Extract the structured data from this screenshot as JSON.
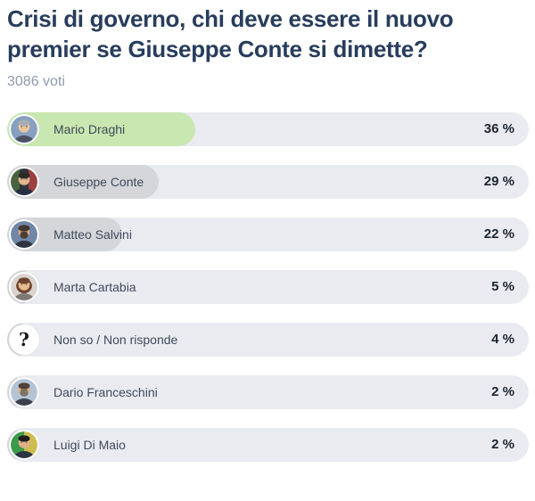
{
  "header": {
    "title": "Crisi di governo, chi deve essere il nuovo premier se Giuseppe Conte si dimette?",
    "votes": "3086 voti"
  },
  "poll": {
    "track_color": "#e9ebf1",
    "leader_fill_color": "#c9e7b0",
    "fill_color": "#d4d6da",
    "options": [
      {
        "name": "Mario Draghi",
        "percent": 36,
        "percent_label": "36 %",
        "leader": true,
        "avatar": {
          "style": "photo",
          "bg": [
            "#87a0c0"
          ],
          "hair": "#a8adb3",
          "skin": "#e9c49f",
          "shirt": "#4a5365",
          "beard": null,
          "hairstyle": "short"
        }
      },
      {
        "name": "Giuseppe Conte",
        "percent": 29,
        "percent_label": "29 %",
        "leader": false,
        "avatar": {
          "style": "photo",
          "bg": [
            "#49633f",
            "#30343c",
            "#9c4040"
          ],
          "hair": "#2e2a28",
          "skin": "#e2b68e",
          "shirt": "#273043",
          "beard": null,
          "hairstyle": "short"
        }
      },
      {
        "name": "Matteo Salvini",
        "percent": 22,
        "percent_label": "22 %",
        "leader": false,
        "avatar": {
          "style": "photo",
          "bg": [
            "#7087a8"
          ],
          "hair": "#41382f",
          "skin": "#dcab80",
          "shirt": "#2e333d",
          "beard": "#4a4036",
          "hairstyle": "short"
        }
      },
      {
        "name": "Marta Cartabia",
        "percent": 5,
        "percent_label": "5 %",
        "leader": false,
        "avatar": {
          "style": "photo",
          "bg": [
            "#d9d4ce"
          ],
          "hair": "#6e432f",
          "skin": "#e6ba92",
          "shirt": "#7d7a76",
          "beard": null,
          "hairstyle": "long"
        }
      },
      {
        "name": "Non so / Non risponde",
        "percent": 4,
        "percent_label": "4 %",
        "leader": false,
        "avatar": {
          "style": "question",
          "glyph": "?",
          "bg": [
            "#ffffff"
          ],
          "glyph_color": "#151515"
        }
      },
      {
        "name": "Dario Franceschini",
        "percent": 2,
        "percent_label": "2 %",
        "leader": false,
        "avatar": {
          "style": "photo",
          "bg": [
            "#b5c4d4"
          ],
          "hair": "#4e4138",
          "skin": "#ddad83",
          "shirt": "#39414e",
          "beard": "#7d7468",
          "hairstyle": "short"
        }
      },
      {
        "name": "Luigi Di Maio",
        "percent": 2,
        "percent_label": "2 %",
        "leader": false,
        "avatar": {
          "style": "photo",
          "bg": [
            "#3c9a4c",
            "#cdbd51"
          ],
          "hair": "#201c1a",
          "skin": "#e0b089",
          "shirt": "#2d3442",
          "beard": null,
          "hairstyle": "short"
        }
      }
    ]
  },
  "chart_data": {
    "type": "bar",
    "orientation": "horizontal",
    "title": "Crisi di governo, chi deve essere il nuovo premier se Giuseppe Conte si dimette?",
    "subtitle": "3086 voti",
    "total_votes": 3086,
    "categories": [
      "Mario Draghi",
      "Giuseppe Conte",
      "Matteo Salvini",
      "Marta Cartabia",
      "Non so / Non risponde",
      "Dario Franceschini",
      "Luigi Di Maio"
    ],
    "values": [
      36,
      29,
      22,
      5,
      4,
      2,
      2
    ],
    "unit": "%",
    "xlim": [
      0,
      100
    ],
    "highlight_index": 0,
    "highlight_color": "#c9e7b0",
    "bar_color": "#d4d6da",
    "track_color": "#e9ebf1",
    "grid": false,
    "legend": false
  }
}
